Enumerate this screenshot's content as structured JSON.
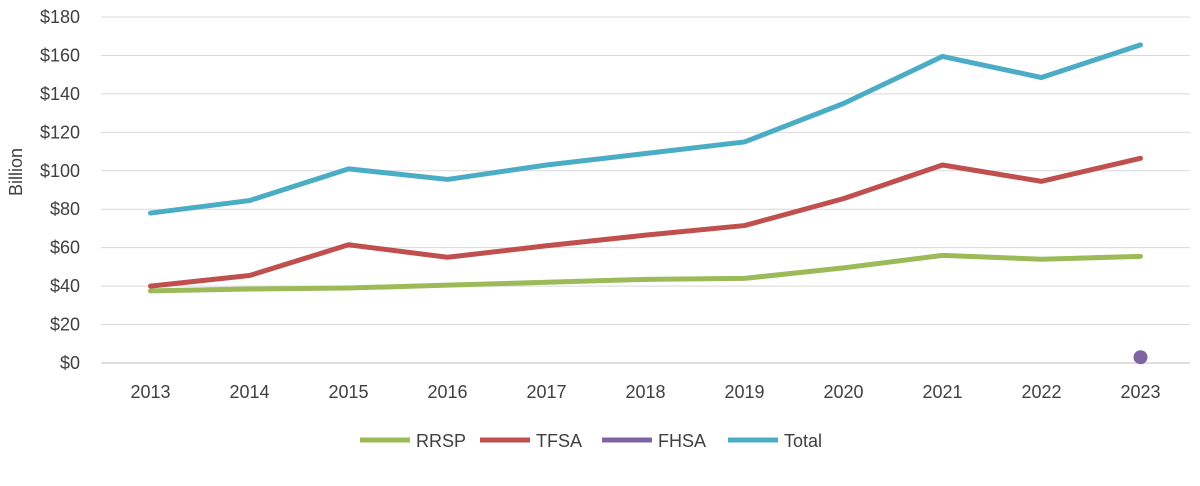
{
  "chart_data": {
    "type": "line",
    "title": "",
    "xlabel": "",
    "ylabel": "Billion",
    "ylim": [
      0,
      180
    ],
    "yticks": [
      0,
      20,
      40,
      60,
      80,
      100,
      120,
      140,
      160,
      180
    ],
    "ytick_labels": [
      "$0",
      "$20",
      "$40",
      "$60",
      "$80",
      "$100",
      "$120",
      "$140",
      "$160",
      "$180"
    ],
    "categories": [
      "2013",
      "2014",
      "2015",
      "2016",
      "2017",
      "2018",
      "2019",
      "2020",
      "2021",
      "2022",
      "2023"
    ],
    "grid": true,
    "legend_position": "bottom",
    "series": [
      {
        "name": "RRSP",
        "color": "#9bbb59",
        "values": [
          37.5,
          38.5,
          39,
          40.5,
          42,
          43.5,
          44,
          49.5,
          56,
          54,
          55.5
        ]
      },
      {
        "name": "TFSA",
        "color": "#c0504d",
        "values": [
          40,
          45.5,
          61.5,
          55,
          61,
          66.5,
          71.5,
          85.5,
          103,
          94.5,
          106.5
        ]
      },
      {
        "name": "FHSA",
        "color": "#8064a2",
        "values": [
          null,
          null,
          null,
          null,
          null,
          null,
          null,
          null,
          null,
          null,
          3
        ]
      },
      {
        "name": "Total",
        "color": "#4bacc6",
        "values": [
          78,
          84.5,
          101,
          95.5,
          103,
          109,
          115,
          135,
          159.5,
          148.5,
          165.5
        ]
      }
    ]
  }
}
